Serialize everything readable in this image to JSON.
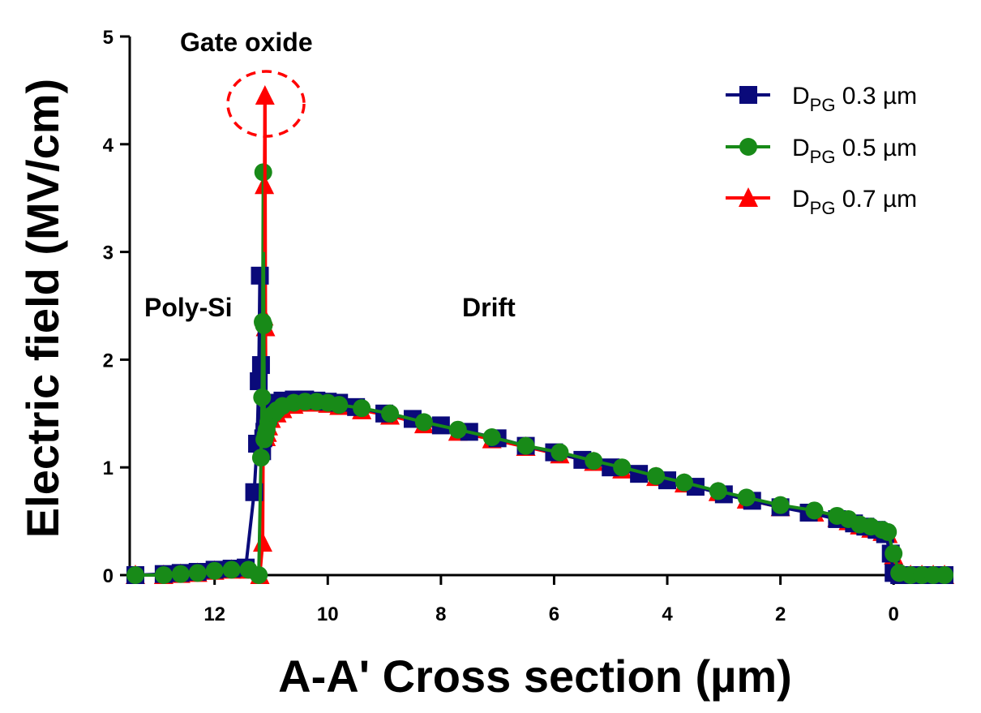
{
  "chart_data": {
    "type": "line",
    "xlabel": "A-A' Cross section (µm)",
    "ylabel": "Electric field  (MV/cm)",
    "xlim": [
      13.5,
      -1.0
    ],
    "ylim": [
      0,
      5
    ],
    "x_reversed": true,
    "x_ticks": [
      12,
      10,
      8,
      6,
      4,
      2,
      0
    ],
    "y_ticks": [
      0,
      1,
      2,
      3,
      4,
      5
    ],
    "grid": false,
    "legend_position": "top-right",
    "annotations": {
      "gate_oxide": "Gate oxide",
      "poly_si": "Poly-Si",
      "drift": "Drift"
    },
    "series": [
      {
        "name": "D",
        "name_sub": "PG",
        "name_suffix": " 0.3 µm",
        "color": "#0a0a7a",
        "marker": "square",
        "x": [
          13.4,
          12.9,
          12.6,
          12.3,
          12.0,
          11.7,
          11.45,
          11.3,
          11.25,
          11.22,
          11.2,
          11.18,
          11.16,
          11.14,
          11.12,
          11.1,
          11.05,
          11.0,
          10.9,
          10.8,
          10.6,
          10.4,
          10.2,
          10.0,
          9.8,
          9.5,
          9.0,
          8.5,
          8.0,
          7.5,
          7.0,
          6.5,
          6.0,
          5.5,
          5.0,
          4.5,
          4.0,
          3.5,
          3.0,
          2.5,
          2.0,
          1.5,
          1.0,
          0.7,
          0.5,
          0.3,
          0.15,
          0.05,
          0.0,
          -0.1,
          -0.3,
          -0.5,
          -0.7,
          -0.9
        ],
        "y": [
          0.0,
          0.01,
          0.02,
          0.03,
          0.05,
          0.06,
          0.07,
          0.77,
          1.22,
          1.8,
          2.78,
          1.95,
          1.15,
          1.27,
          1.33,
          1.4,
          1.48,
          1.53,
          1.6,
          1.62,
          1.63,
          1.63,
          1.62,
          1.61,
          1.6,
          1.56,
          1.5,
          1.45,
          1.39,
          1.33,
          1.27,
          1.2,
          1.14,
          1.07,
          1.0,
          0.94,
          0.88,
          0.82,
          0.75,
          0.69,
          0.63,
          0.58,
          0.52,
          0.48,
          0.45,
          0.42,
          0.38,
          0.2,
          0.02,
          0.0,
          0.0,
          0.0,
          0.0,
          0.0
        ]
      },
      {
        "name": "D",
        "name_sub": "PG",
        "name_suffix": " 0.5 µm",
        "color": "#188a18",
        "marker": "circle",
        "x": [
          13.4,
          12.9,
          12.6,
          12.3,
          12.0,
          11.7,
          11.4,
          11.22,
          11.18,
          11.16,
          11.15,
          11.14,
          11.13,
          11.12,
          11.1,
          11.08,
          11.05,
          11.0,
          10.95,
          10.9,
          10.8,
          10.6,
          10.4,
          10.2,
          10.0,
          9.8,
          9.4,
          8.9,
          8.3,
          7.7,
          7.1,
          6.5,
          5.9,
          5.3,
          4.8,
          4.2,
          3.7,
          3.1,
          2.6,
          2.0,
          1.4,
          1.0,
          0.8,
          0.6,
          0.4,
          0.2,
          0.1,
          0.0,
          -0.1,
          -0.3,
          -0.5,
          -0.7,
          -0.9
        ],
        "y": [
          0.0,
          0.0,
          0.01,
          0.02,
          0.04,
          0.05,
          0.05,
          0.0,
          1.09,
          1.65,
          2.35,
          3.74,
          2.32,
          1.26,
          1.3,
          1.35,
          1.42,
          1.48,
          1.5,
          1.53,
          1.57,
          1.6,
          1.61,
          1.61,
          1.6,
          1.58,
          1.55,
          1.5,
          1.42,
          1.35,
          1.28,
          1.2,
          1.14,
          1.06,
          1.0,
          0.92,
          0.86,
          0.78,
          0.72,
          0.65,
          0.6,
          0.55,
          0.52,
          0.47,
          0.45,
          0.42,
          0.4,
          0.2,
          0.02,
          0.0,
          0.0,
          0.0,
          0.0
        ]
      },
      {
        "name": "D",
        "name_sub": "PG",
        "name_suffix": " 0.7 µm",
        "color": "#ff0000",
        "marker": "triangle",
        "x": [
          13.4,
          12.9,
          12.6,
          12.3,
          12.0,
          11.7,
          11.4,
          11.2,
          11.15,
          11.13,
          11.12,
          11.11,
          11.1,
          11.09,
          11.07,
          11.05,
          11.0,
          10.9,
          10.8,
          10.6,
          10.4,
          10.2,
          10.0,
          9.8,
          9.4,
          8.9,
          8.3,
          7.7,
          7.1,
          6.5,
          5.9,
          5.3,
          4.8,
          4.2,
          3.7,
          3.1,
          2.6,
          2.0,
          1.4,
          1.0,
          0.8,
          0.6,
          0.4,
          0.2,
          0.1,
          0.0,
          -0.1,
          -0.3,
          -0.5,
          -0.7,
          -0.9
        ],
        "y": [
          0.0,
          0.0,
          0.01,
          0.02,
          0.04,
          0.05,
          0.05,
          0.0,
          0.3,
          2.4,
          3.62,
          4.45,
          2.3,
          1.28,
          1.32,
          1.38,
          1.45,
          1.5,
          1.54,
          1.58,
          1.6,
          1.6,
          1.59,
          1.57,
          1.53,
          1.48,
          1.4,
          1.33,
          1.26,
          1.19,
          1.12,
          1.05,
          0.98,
          0.91,
          0.85,
          0.77,
          0.7,
          0.63,
          0.58,
          0.53,
          0.5,
          0.46,
          0.43,
          0.4,
          0.38,
          0.18,
          0.02,
          0.0,
          0.0,
          0.0,
          0.0
        ]
      }
    ]
  }
}
